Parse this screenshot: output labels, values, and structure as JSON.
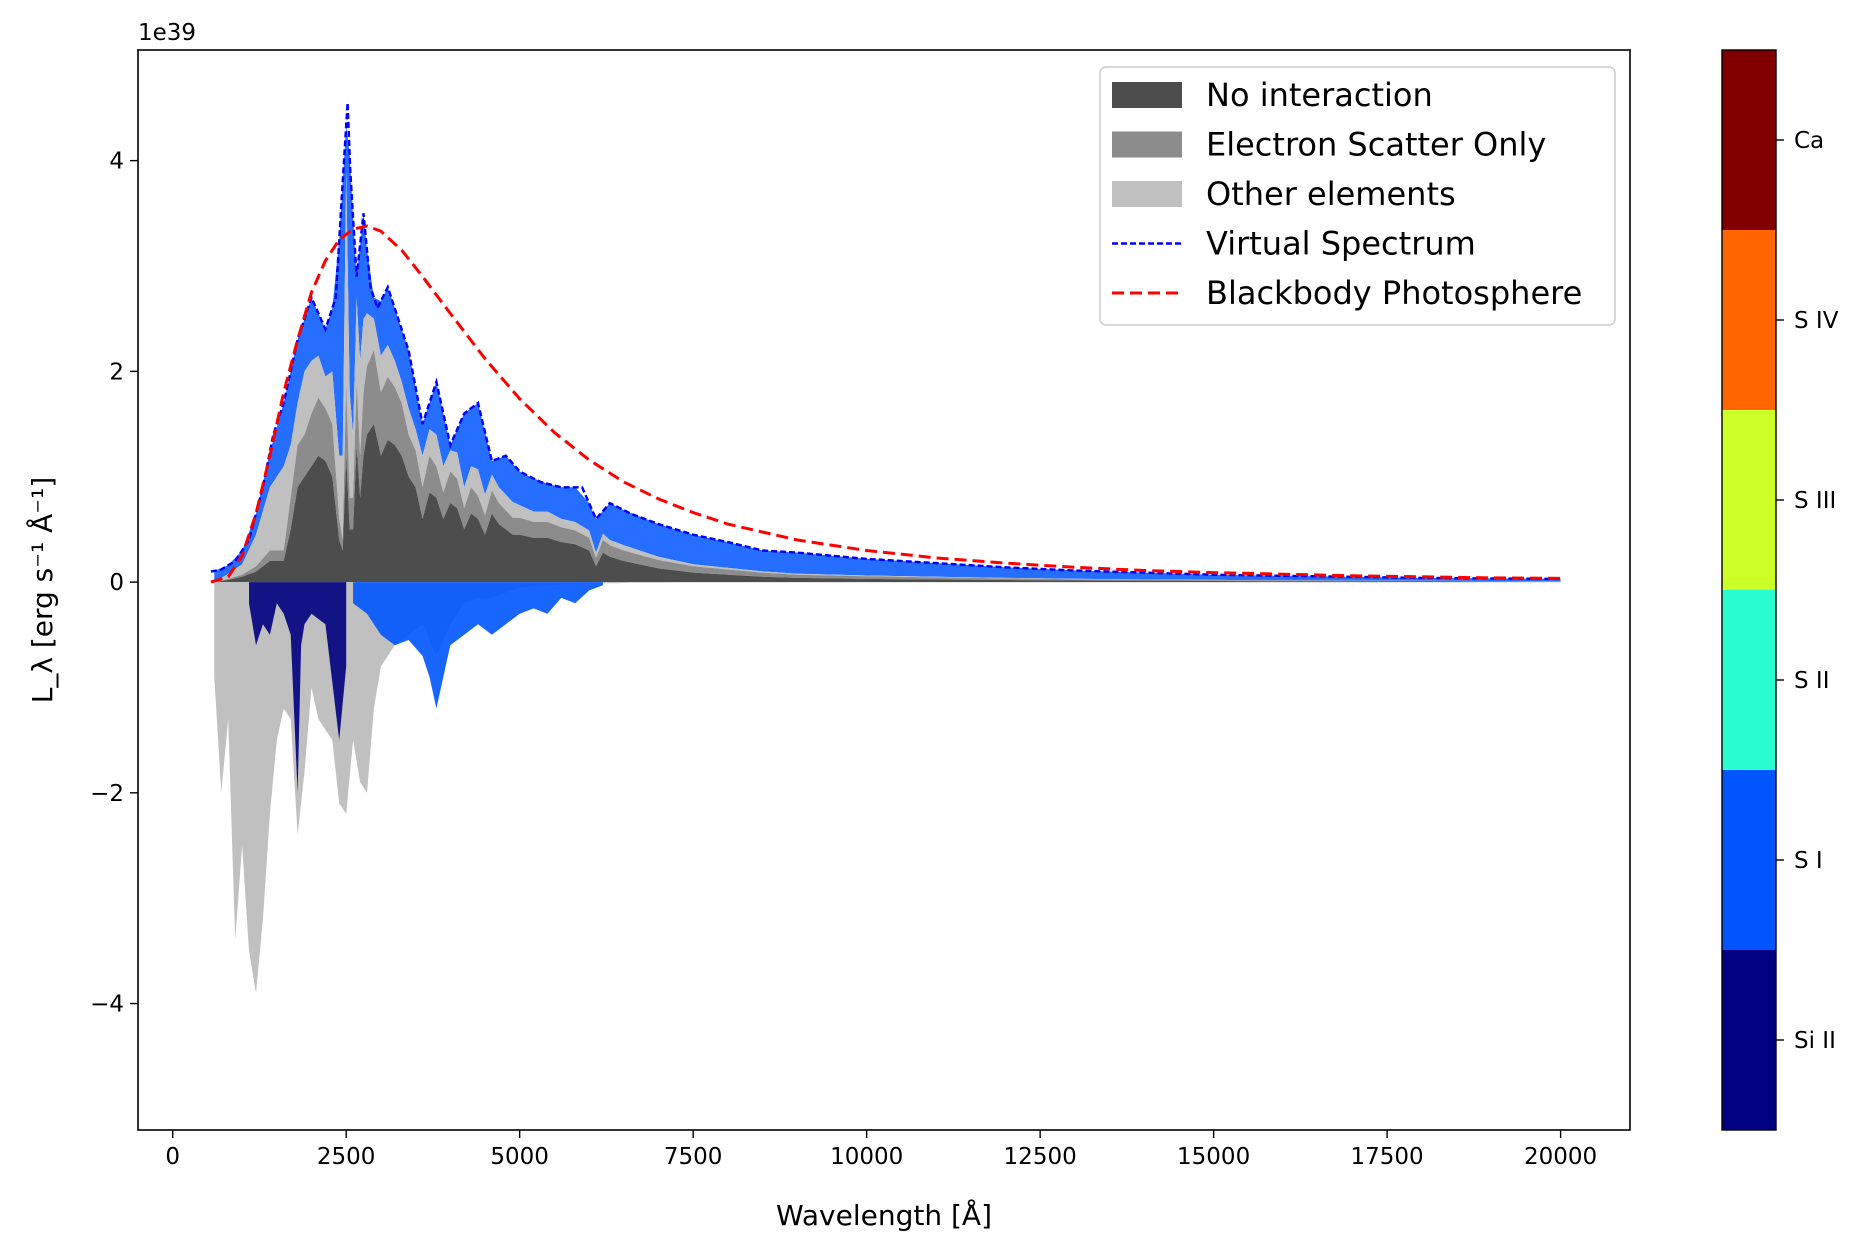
{
  "chart_data": {
    "type": "area",
    "offset_label": "1e39",
    "xlabel": "Wavelength [Å]",
    "ylabel": "L_λ [erg s⁻¹ Å⁻¹]",
    "xlim": [
      -500,
      21000
    ],
    "ylim": [
      -5.2,
      5.05
    ],
    "x_ticks": [
      0,
      2500,
      5000,
      7500,
      10000,
      12500,
      15000,
      17500,
      20000
    ],
    "x_tick_labels": [
      "0",
      "2500",
      "5000",
      "7500",
      "10000",
      "12500",
      "15000",
      "17500",
      "20000"
    ],
    "y_ticks": [
      -4,
      -2,
      0,
      2,
      4
    ],
    "y_tick_labels": [
      "−4",
      "−2",
      "0",
      "2",
      "4"
    ],
    "legend_position": "upper right",
    "legend": [
      {
        "label": "No interaction",
        "color": "#4d4d4d",
        "kind": "patch"
      },
      {
        "label": "Electron Scatter Only",
        "color": "#8c8c8c",
        "kind": "patch"
      },
      {
        "label": "Other elements",
        "color": "#c0c0c0",
        "kind": "patch"
      },
      {
        "label": "Virtual Spectrum",
        "color": "#0000ff",
        "kind": "dotted-line"
      },
      {
        "label": "Blackbody Photosphere",
        "color": "#ff0000",
        "kind": "dashed-line"
      }
    ],
    "series": [
      {
        "name": "Virtual Spectrum",
        "color": "#0000ff",
        "x": [
          550,
          700,
          900,
          1100,
          1300,
          1450,
          1600,
          1800,
          2000,
          2200,
          2350,
          2450,
          2520,
          2560,
          2650,
          2750,
          2850,
          2950,
          3100,
          3250,
          3400,
          3600,
          3800,
          4000,
          4200,
          4400,
          4600,
          4800,
          5000,
          5300,
          5600,
          5900,
          6100,
          6300,
          6600,
          7000,
          7500,
          8000,
          8500,
          9000,
          10000,
          11000,
          12000,
          13000,
          14000,
          15000,
          16000,
          17000,
          18000,
          19000,
          20000
        ],
        "y": [
          0.1,
          0.12,
          0.2,
          0.4,
          0.9,
          1.4,
          1.7,
          2.3,
          2.7,
          2.4,
          2.7,
          3.8,
          4.55,
          3.9,
          2.9,
          3.5,
          2.8,
          2.6,
          2.8,
          2.5,
          2.2,
          1.5,
          1.9,
          1.3,
          1.6,
          1.7,
          1.15,
          1.2,
          1.05,
          0.95,
          0.9,
          0.9,
          0.6,
          0.75,
          0.65,
          0.55,
          0.45,
          0.38,
          0.3,
          0.28,
          0.22,
          0.18,
          0.14,
          0.11,
          0.09,
          0.07,
          0.06,
          0.05,
          0.04,
          0.035,
          0.03
        ]
      },
      {
        "name": "Blackbody Photosphere",
        "color": "#ff0000",
        "x": [
          550,
          800,
          1000,
          1200,
          1400,
          1600,
          1800,
          2000,
          2200,
          2400,
          2600,
          2800,
          3000,
          3300,
          3600,
          4000,
          4500,
          5000,
          5500,
          6000,
          6500,
          7000,
          7500,
          8000,
          9000,
          10000,
          11000,
          12000,
          13000,
          14000,
          15000,
          16000,
          17000,
          18000,
          19000,
          20000
        ],
        "y": [
          0.0,
          0.05,
          0.25,
          0.65,
          1.2,
          1.8,
          2.3,
          2.75,
          3.05,
          3.25,
          3.35,
          3.38,
          3.33,
          3.15,
          2.9,
          2.55,
          2.12,
          1.74,
          1.42,
          1.16,
          0.95,
          0.79,
          0.66,
          0.55,
          0.4,
          0.3,
          0.23,
          0.18,
          0.14,
          0.11,
          0.09,
          0.075,
          0.06,
          0.05,
          0.04,
          0.035
        ]
      }
    ],
    "stacked_emission": {
      "x": [
        600,
        800,
        1000,
        1200,
        1400,
        1600,
        1700,
        1800,
        1900,
        2000,
        2100,
        2200,
        2300,
        2400,
        2450,
        2500,
        2550,
        2600,
        2650,
        2700,
        2750,
        2800,
        2900,
        3000,
        3100,
        3200,
        3300,
        3400,
        3500,
        3600,
        3700,
        3800,
        3900,
        4000,
        4100,
        4200,
        4300,
        4400,
        4500,
        4600,
        4700,
        4800,
        4900,
        5000,
        5200,
        5400,
        5600,
        5800,
        6000,
        6100,
        6200,
        6300,
        6500,
        7000,
        7500,
        8000,
        8500,
        9000,
        10000,
        11000,
        12000,
        13000,
        14000,
        15000,
        16000,
        17000,
        18000,
        19000,
        20000
      ],
      "no_interaction": [
        0,
        0.02,
        0.05,
        0.1,
        0.2,
        0.2,
        0.5,
        0.9,
        1.0,
        1.1,
        1.2,
        1.15,
        1.0,
        0.4,
        0.3,
        1.2,
        0.5,
        0.5,
        1.3,
        0.8,
        1.2,
        1.4,
        1.5,
        1.2,
        1.35,
        1.3,
        1.2,
        1.0,
        0.9,
        0.6,
        0.85,
        0.8,
        0.6,
        0.75,
        0.7,
        0.5,
        0.65,
        0.6,
        0.45,
        0.65,
        0.55,
        0.5,
        0.45,
        0.45,
        0.42,
        0.42,
        0.38,
        0.36,
        0.3,
        0.15,
        0.28,
        0.24,
        0.2,
        0.13,
        0.09,
        0.07,
        0.05,
        0.04,
        0.03,
        0.025,
        0.02,
        0.015,
        0.012,
        0.01,
        0.008,
        0.007,
        0.006,
        0.005,
        0.004
      ],
      "electron_scatter": [
        0,
        0.01,
        0.02,
        0.05,
        0.1,
        0.1,
        0.3,
        0.4,
        0.4,
        0.5,
        0.55,
        0.5,
        0.5,
        0.2,
        0.1,
        0.7,
        0.3,
        0.3,
        0.6,
        0.4,
        0.6,
        0.65,
        0.7,
        0.6,
        0.6,
        0.55,
        0.5,
        0.4,
        0.35,
        0.3,
        0.35,
        0.3,
        0.25,
        0.3,
        0.28,
        0.2,
        0.25,
        0.22,
        0.18,
        0.22,
        0.2,
        0.18,
        0.16,
        0.16,
        0.15,
        0.15,
        0.14,
        0.13,
        0.12,
        0.08,
        0.12,
        0.11,
        0.1,
        0.08,
        0.06,
        0.05,
        0.04,
        0.03,
        0.025,
        0.02,
        0.015,
        0.012,
        0.01,
        0.008,
        0.007,
        0.006,
        0.005,
        0.004,
        0.003
      ],
      "other_elements": [
        0,
        0.05,
        0.1,
        0.3,
        0.6,
        0.8,
        0.5,
        0.4,
        0.6,
        0.5,
        0.4,
        0.3,
        0.5,
        0.6,
        0.8,
        2.0,
        1.0,
        0.6,
        0.8,
        0.9,
        0.7,
        0.5,
        0.3,
        0.35,
        0.3,
        0.25,
        0.2,
        0.25,
        0.2,
        0.3,
        0.25,
        0.3,
        0.25,
        0.2,
        0.25,
        0.2,
        0.2,
        0.25,
        0.2,
        0.15,
        0.15,
        0.15,
        0.15,
        0.12,
        0.1,
        0.1,
        0.08,
        0.08,
        0.07,
        0.05,
        0.06,
        0.05,
        0.05,
        0.03,
        0.02,
        0.015,
        0.012,
        0.01,
        0.008,
        0.006,
        0.005,
        0.004,
        0.003,
        0.003,
        0.002,
        0.002,
        0.002,
        0.001,
        0.001
      ]
    },
    "absorption": {
      "x": [
        600,
        700,
        800,
        900,
        1000,
        1100,
        1200,
        1300,
        1400,
        1500,
        1600,
        1700,
        1800,
        1900,
        2000,
        2100,
        2200,
        2300,
        2400,
        2500,
        2600,
        2700,
        2800,
        2900,
        3000,
        3200,
        3400,
        3600,
        3800,
        4000,
        4200,
        4400,
        4600,
        4800,
        5000,
        5200,
        5400,
        5600,
        5800,
        6000,
        6200,
        6400,
        6600,
        7000,
        8000,
        9000,
        10000,
        12000,
        15000,
        20000
      ],
      "other_elements": [
        -0.9,
        -2.0,
        -1.3,
        -3.4,
        -2.5,
        -3.5,
        -3.9,
        -3.2,
        -2.2,
        -1.5,
        -1.2,
        -1.3,
        -2.4,
        -1.8,
        -1.0,
        -1.3,
        -1.4,
        -1.5,
        -2.1,
        -2.2,
        -1.5,
        -1.9,
        -2.0,
        -1.2,
        -0.8,
        -0.6,
        -0.5,
        -0.4,
        -0.7,
        -0.4,
        -0.2,
        -0.15,
        -0.15,
        -0.1,
        -0.05,
        -0.04,
        -0.03,
        -0.02,
        -0.01,
        -0.01,
        -0.01,
        -0.01,
        -0.005,
        -0.005,
        0,
        0,
        0,
        0,
        0,
        0
      ],
      "si_ii_x": [
        1100,
        1200,
        1300,
        1400,
        1500,
        1600,
        1700,
        1800,
        1850,
        1900,
        2000,
        2200,
        2400,
        2500
      ],
      "si_ii": [
        -0.2,
        -0.6,
        -0.4,
        -0.5,
        -0.2,
        -0.3,
        -0.5,
        -2.0,
        -0.6,
        -0.4,
        -0.3,
        -0.4,
        -1.5,
        -0.8
      ],
      "s_i_x": [
        2600,
        2800,
        3000,
        3200,
        3400,
        3600,
        3700,
        3800,
        4000,
        4200,
        4400,
        4600,
        4800,
        5000,
        5200,
        5400,
        5600,
        5800,
        6000,
        6200
      ],
      "s_i": [
        -0.2,
        -0.3,
        -0.5,
        -0.6,
        -0.55,
        -0.7,
        -0.9,
        -1.2,
        -0.6,
        -0.5,
        -0.4,
        -0.5,
        -0.4,
        -0.3,
        -0.25,
        -0.3,
        -0.15,
        -0.2,
        -0.08,
        -0.03
      ]
    }
  },
  "colorbar": {
    "labels": [
      "Ca",
      "S IV",
      "S III",
      "S II",
      "S I",
      "Si II"
    ],
    "colors": [
      "#800000",
      "#ff6600",
      "#cdff29",
      "#29ffce",
      "#0055ff",
      "#000080"
    ]
  }
}
